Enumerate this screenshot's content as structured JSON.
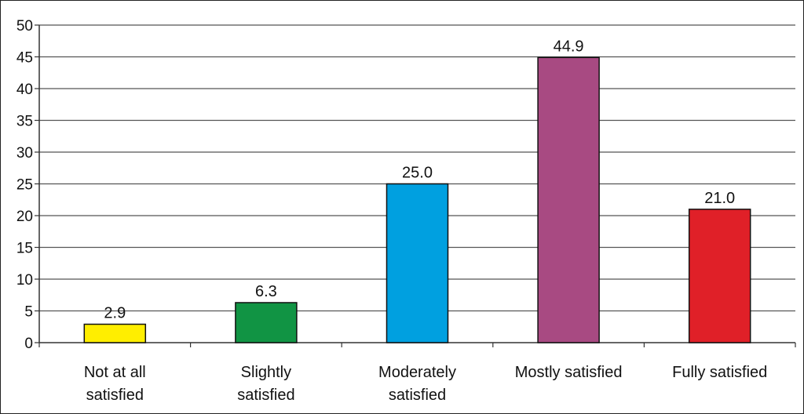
{
  "chart_data": {
    "type": "bar",
    "categories": [
      [
        "Not at all",
        "satisfied"
      ],
      [
        "Slightly",
        "satisfied"
      ],
      [
        "Moderately",
        "satisfied"
      ],
      [
        "Mostly satisfied"
      ],
      [
        "Fully satisfied"
      ]
    ],
    "values": [
      2.9,
      6.3,
      25.0,
      44.9,
      21.0
    ],
    "value_labels": [
      "2.9",
      "6.3",
      "25.0",
      "44.9",
      "21.0"
    ],
    "colors": [
      "#ffee00",
      "#119444",
      "#00a0e0",
      "#a84a82",
      "#e02028"
    ],
    "ylim": [
      0,
      50
    ],
    "yticks": [
      0,
      5,
      10,
      15,
      20,
      25,
      30,
      35,
      40,
      45,
      50
    ],
    "grid": true,
    "title": "",
    "xlabel": "",
    "ylabel": ""
  }
}
